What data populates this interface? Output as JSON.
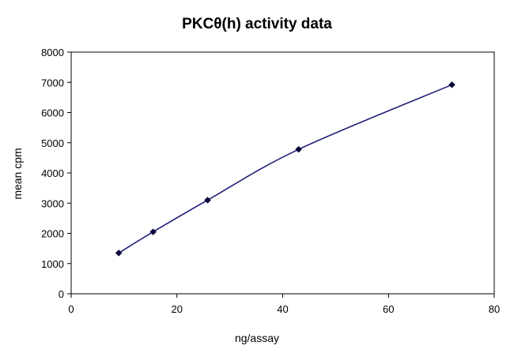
{
  "chart_data": {
    "type": "line",
    "title": "PKCθ(h) activity data",
    "xlabel": "ng/assay",
    "ylabel": "mean cpm",
    "xlim": [
      0,
      80
    ],
    "ylim": [
      0,
      8000
    ],
    "xticks": [
      "0",
      "20",
      "40",
      "60",
      "80"
    ],
    "yticks": [
      "0",
      "1000",
      "2000",
      "3000",
      "4000",
      "5000",
      "6000",
      "7000",
      "8000"
    ],
    "grid": false,
    "legend": "none",
    "series": [
      {
        "x": [
          9,
          15.5,
          25.8,
          43,
          72
        ],
        "values": [
          1350,
          2050,
          3100,
          4780,
          6920
        ],
        "color": "#1f1f7a"
      }
    ]
  }
}
